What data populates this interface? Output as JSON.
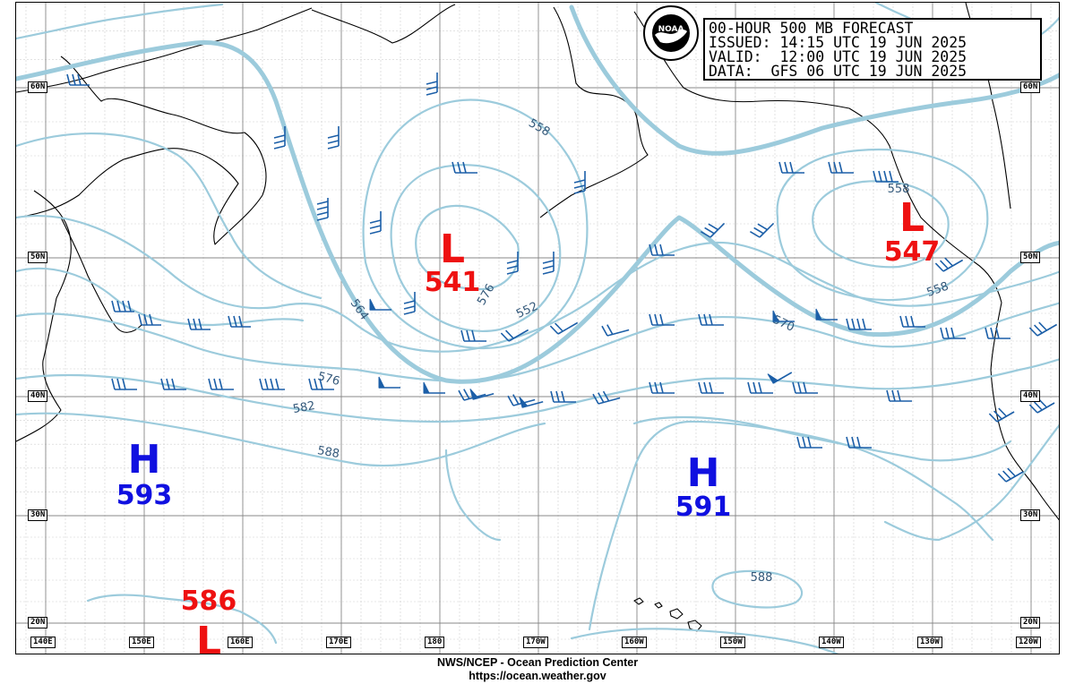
{
  "map": {
    "title_line": "00-HOUR 500 MB FORECAST",
    "issued_line": "ISSUED: 14:15 UTC 19 JUN 2025",
    "valid_line": "VALID:  12:00 UTC 19 JUN 2025",
    "data_line": "DATA:  GFS 06 UTC 19 JUN 2025",
    "logo_text": "NOAA",
    "logo_ring_text": "NATIONAL OCEANIC AND ATMOSPHERIC ADMINISTRATION · U.S. DEPARTMENT OF COMMERCE",
    "colors": {
      "contour": "#9ccbdc",
      "low": "#ee1111",
      "high": "#1010e0",
      "barb": "#1c5fa8"
    },
    "lat_labels_left": [
      "60N",
      "50N",
      "40N",
      "30N",
      "20N"
    ],
    "lat_labels_right": [
      "60N",
      "50N",
      "40N",
      "30N",
      "20N"
    ],
    "lon_labels": [
      "140E",
      "150E",
      "160E",
      "170E",
      "180",
      "170W",
      "160W",
      "150W",
      "140W",
      "130W",
      "120W"
    ],
    "contour_labels": [
      "558",
      "564",
      "576",
      "552",
      "570",
      "558",
      "576",
      "582",
      "588",
      "588",
      "558"
    ],
    "centers": [
      {
        "type": "L",
        "value": "541"
      },
      {
        "type": "L",
        "value": "547"
      },
      {
        "type": "H",
        "value": "593"
      },
      {
        "type": "H",
        "value": "591"
      },
      {
        "type": "L",
        "value": "586"
      }
    ]
  },
  "footer": {
    "line1": "NWS/NCEP - Ocean Prediction Center",
    "line2": "https://ocean.weather.gov"
  }
}
